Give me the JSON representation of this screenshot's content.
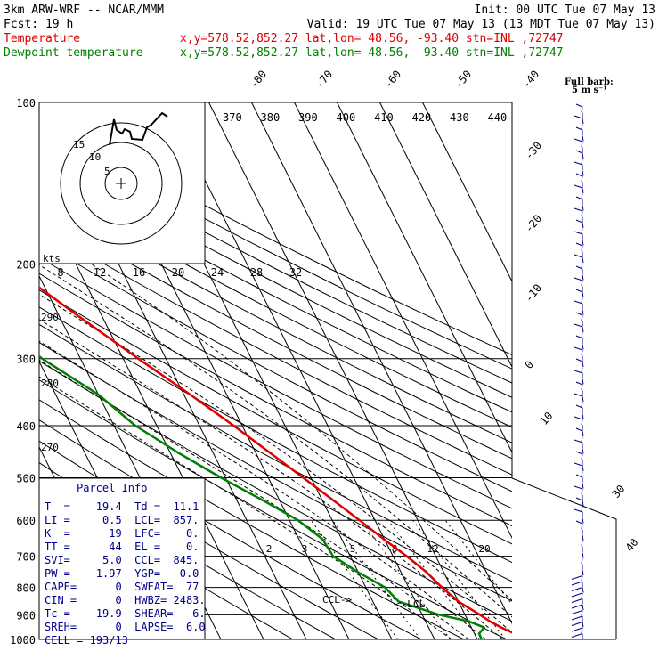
{
  "header": {
    "line1_left": "3km ARW-WRF -- NCAR/MMM",
    "line1_right": "Init: 00 UTC Tue 07 May 13",
    "line2_left": "Fcst:    19 h",
    "line2_right": "Valid: 19 UTC Tue 07 May 13 (13 MDT Tue 07 May 13)",
    "temp_label": "Temperature",
    "temp_info": "x,y=578.52,852.27   lat,lon= 48.56, -93.40   stn=INL ,72747",
    "dew_label": "Dewpoint temperature",
    "dew_info": "x,y=578.52,852.27   lat,lon= 48.56, -93.40   stn=INL ,72747"
  },
  "barb_legend": {
    "line1": "Full barb:",
    "line2": "5 m s⁻¹"
  },
  "kts_label": "kts",
  "parcel": {
    "title": "Parcel Info",
    "rows": [
      "T  =    19.4  Td =  11.1",
      "LI =     0.5  LCL=  857.",
      "K  =      19  LFC=    0.",
      "TT =      44  EL =    0.",
      "SVI=     5.0  CCL=  845.",
      "PW =    1.97  YGP=   0.0",
      "CAPE=      0  SWEAT=  77",
      "CIN =      0  HWBZ= 2483.",
      "Tc =    19.9  SHEAR=   6.",
      "SREH=      0  LAPSE=  6.0",
      "CELL = 193/13"
    ]
  },
  "annotations": {
    "ccl": "CCL->",
    "lcl": "<-LCL"
  },
  "chart_data": {
    "type": "line",
    "title": "",
    "ylabel": "",
    "xlabel": "",
    "ylim": [
      1000,
      100
    ],
    "y_scale": "log-pressure",
    "pressure_ticks": [
      "100",
      "200",
      "300",
      "400",
      "500",
      "600",
      "700",
      "800",
      "900",
      "1000"
    ],
    "isotherm_labels": [
      "-80",
      "-70",
      "-60",
      "-50",
      "-40",
      "-30",
      "-20",
      "-10",
      "0",
      "10",
      "30",
      "40"
    ],
    "theta_labels_top": [
      "370",
      "380",
      "390",
      "400",
      "410",
      "420",
      "430",
      "440"
    ],
    "theta_labels_left": [
      "290",
      "280",
      "270"
    ],
    "hodograph_speed_labels": [
      "8",
      "12",
      "16",
      "20",
      "24",
      "28",
      "32"
    ],
    "hodograph_ring_labels": [
      "5",
      "10",
      "15"
    ],
    "mixing_ratio_labels": [
      "2",
      "3",
      "5",
      "8",
      "12",
      "20"
    ],
    "series": [
      {
        "name": "Temperature",
        "color": "#e00000",
        "points": [
          [
            1000,
            21.5
          ],
          [
            975,
            19.4
          ],
          [
            950,
            17
          ],
          [
            925,
            15
          ],
          [
            900,
            13.5
          ],
          [
            850,
            10
          ],
          [
            800,
            7.8
          ],
          [
            750,
            6
          ],
          [
            700,
            3.2
          ],
          [
            650,
            -0.2
          ],
          [
            600,
            -3.6
          ],
          [
            550,
            -7.5
          ],
          [
            500,
            -11.8
          ],
          [
            450,
            -16.6
          ],
          [
            400,
            -22
          ],
          [
            350,
            -28.5
          ],
          [
            300,
            -36.5
          ],
          [
            250,
            -45.5
          ],
          [
            225,
            -50.5
          ],
          [
            200,
            -56
          ],
          [
            170,
            -55
          ],
          [
            150,
            -54.5
          ],
          [
            125,
            -52
          ],
          [
            110,
            -49.5
          ],
          [
            100,
            -47.5
          ]
        ]
      },
      {
        "name": "Dewpoint temperature",
        "color": "#008000",
        "points": [
          [
            1000,
            11
          ],
          [
            975,
            11.1
          ],
          [
            950,
            13
          ],
          [
            925,
            10
          ],
          [
            900,
            4
          ],
          [
            850,
            -4
          ],
          [
            800,
            -5.5
          ],
          [
            750,
            -10
          ],
          [
            700,
            -14
          ],
          [
            650,
            -14.5
          ],
          [
            600,
            -18
          ],
          [
            550,
            -24
          ],
          [
            500,
            -31
          ],
          [
            450,
            -38
          ],
          [
            400,
            -45
          ],
          [
            350,
            -50
          ],
          [
            300,
            -59
          ],
          [
            250,
            -65.5
          ],
          [
            200,
            -73.5
          ],
          [
            170,
            -81.5
          ],
          [
            150,
            -85.5
          ],
          [
            125,
            -93
          ],
          [
            110,
            -95
          ],
          [
            100,
            -96
          ]
        ]
      }
    ],
    "grid": true
  },
  "colors": {
    "temperature": "#e00000",
    "dewpoint": "#008000",
    "parcel_text": "#00008b",
    "barbs": "#00008b"
  }
}
